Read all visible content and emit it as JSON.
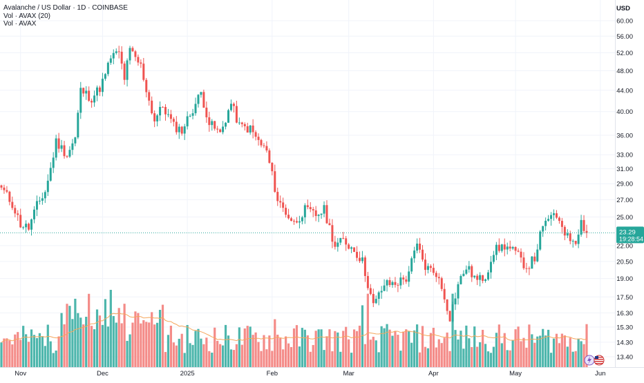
{
  "legend": {
    "title": "Avalanche / US Dollar · 1D · COINBASE",
    "vol_ma": "Vol · AVAX (20)",
    "vol": "Vol · AVAX"
  },
  "axis": {
    "currency": "USD",
    "last_price": "23.29",
    "countdown": "19:28:54"
  },
  "colors": {
    "up": "#26a69a",
    "down": "#ef5350",
    "up_volume": "#4db6ac",
    "down_volume": "#f48b88",
    "volume_ma": "#f5a65b",
    "grid": "#f0f3fa",
    "price_line": "#26a69a"
  },
  "chart_data": {
    "type": "candlestick",
    "title": "Avalanche / US Dollar · 1D · COINBASE",
    "scale": "log",
    "grid": true,
    "y_ticks": [
      "60.00",
      "56.00",
      "52.00",
      "48.00",
      "44.00",
      "40.00",
      "36.00",
      "33.00",
      "31.00",
      "29.00",
      "27.00",
      "25.00",
      "22.00",
      "20.50",
      "19.00",
      "17.50",
      "16.30",
      "15.30",
      "14.30",
      "13.40"
    ],
    "x_ticks": [
      "Nov",
      "Dec",
      "2025",
      "Feb",
      "Mar",
      "Apr",
      "May",
      "Jun"
    ],
    "last_price": 23.29,
    "series": [
      {
        "name": "AVAX",
        "waypoints": [
          [
            "2024-10-25",
            28.5
          ],
          [
            "2024-10-29",
            26.5
          ],
          [
            "2024-11-01",
            24.2
          ],
          [
            "2024-11-04",
            23.8
          ],
          [
            "2024-11-07",
            26.3
          ],
          [
            "2024-11-10",
            28.0
          ],
          [
            "2024-11-12",
            31.0
          ],
          [
            "2024-11-14",
            35.0
          ],
          [
            "2024-11-18",
            33.0
          ],
          [
            "2024-11-21",
            35.5
          ],
          [
            "2024-11-23",
            44.0
          ],
          [
            "2024-11-27",
            42.5
          ],
          [
            "2024-11-30",
            44.5
          ],
          [
            "2024-12-02",
            47.0
          ],
          [
            "2024-12-04",
            51.0
          ],
          [
            "2024-12-07",
            52.0
          ],
          [
            "2024-12-09",
            46.5
          ],
          [
            "2024-12-11",
            52.5
          ],
          [
            "2024-12-15",
            49.0
          ],
          [
            "2024-12-18",
            42.0
          ],
          [
            "2024-12-20",
            38.5
          ],
          [
            "2024-12-23",
            41.0
          ],
          [
            "2024-12-27",
            37.5
          ],
          [
            "2024-12-30",
            36.8
          ],
          [
            "2025-01-03",
            40.5
          ],
          [
            "2025-01-06",
            43.5
          ],
          [
            "2025-01-09",
            38.0
          ],
          [
            "2025-01-13",
            36.2
          ],
          [
            "2025-01-17",
            41.5
          ],
          [
            "2025-01-20",
            37.5
          ],
          [
            "2025-01-24",
            37.0
          ],
          [
            "2025-01-27",
            35.0
          ],
          [
            "2025-01-30",
            33.5
          ],
          [
            "2025-02-03",
            27.0
          ],
          [
            "2025-02-06",
            25.5
          ],
          [
            "2025-02-09",
            24.3
          ],
          [
            "2025-02-13",
            25.8
          ],
          [
            "2025-02-17",
            25.2
          ],
          [
            "2025-02-20",
            25.8
          ],
          [
            "2025-02-24",
            22.0
          ],
          [
            "2025-02-27",
            22.5
          ],
          [
            "2025-03-03",
            21.6
          ],
          [
            "2025-03-06",
            20.5
          ],
          [
            "2025-03-10",
            16.8
          ],
          [
            "2025-03-14",
            18.5
          ],
          [
            "2025-03-18",
            18.6
          ],
          [
            "2025-03-22",
            19.0
          ],
          [
            "2025-03-26",
            22.0
          ],
          [
            "2025-03-29",
            20.0
          ],
          [
            "2025-04-02",
            19.5
          ],
          [
            "2025-04-05",
            17.5
          ],
          [
            "2025-04-07",
            16.0
          ],
          [
            "2025-04-10",
            18.5
          ],
          [
            "2025-04-13",
            20.0
          ],
          [
            "2025-04-17",
            18.8
          ],
          [
            "2025-04-20",
            19.2
          ],
          [
            "2025-04-23",
            21.5
          ],
          [
            "2025-04-27",
            22.0
          ],
          [
            "2025-05-01",
            21.3
          ],
          [
            "2025-05-05",
            20.0
          ],
          [
            "2025-05-08",
            20.8
          ],
          [
            "2025-05-10",
            23.0
          ],
          [
            "2025-05-13",
            25.0
          ],
          [
            "2025-05-17",
            24.8
          ],
          [
            "2025-05-20",
            22.8
          ],
          [
            "2025-05-23",
            22.6
          ],
          [
            "2025-05-25",
            24.5
          ],
          [
            "2025-05-27",
            23.29
          ]
        ]
      }
    ]
  }
}
